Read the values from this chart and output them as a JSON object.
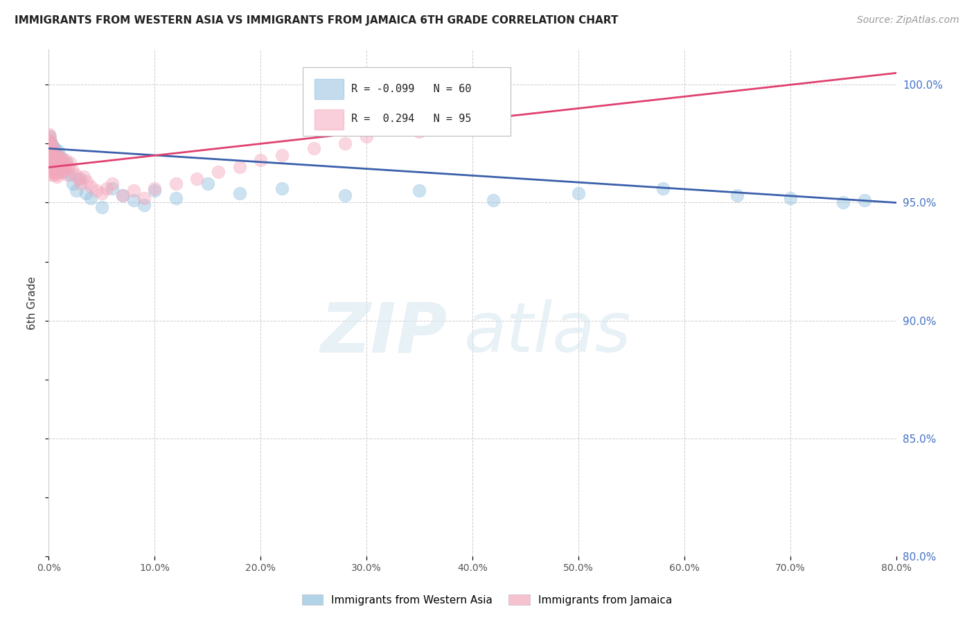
{
  "title": "IMMIGRANTS FROM WESTERN ASIA VS IMMIGRANTS FROM JAMAICA 6TH GRADE CORRELATION CHART",
  "source": "Source: ZipAtlas.com",
  "ylabel": "6th Grade",
  "legend_label_blue": "Immigrants from Western Asia",
  "legend_label_pink": "Immigrants from Jamaica",
  "blue_color": "#92bfdf",
  "pink_color": "#f4a8bc",
  "blue_line_color": "#3a5faa",
  "pink_line_color": "#e04070",
  "watermark_zip": "ZIP",
  "watermark_atlas": "atlas",
  "xlim": [
    0.0,
    80.0
  ],
  "ylim": [
    80.0,
    101.5
  ],
  "ytick_vals": [
    80.0,
    85.0,
    90.0,
    95.0,
    100.0
  ],
  "xtick_vals": [
    0.0,
    10.0,
    20.0,
    30.0,
    40.0,
    50.0,
    60.0,
    70.0,
    80.0
  ],
  "legend_line1": "R = -0.099   N = 60",
  "legend_line2": "R =  0.294   N = 95",
  "blue_scatter_x": [
    0.05,
    0.08,
    0.1,
    0.12,
    0.15,
    0.18,
    0.2,
    0.22,
    0.25,
    0.28,
    0.3,
    0.32,
    0.35,
    0.38,
    0.4,
    0.42,
    0.45,
    0.48,
    0.5,
    0.55,
    0.6,
    0.65,
    0.7,
    0.75,
    0.8,
    0.85,
    0.9,
    1.0,
    1.1,
    1.2,
    1.3,
    1.5,
    1.7,
    2.0,
    2.3,
    2.6,
    3.0,
    3.5,
    4.0,
    5.0,
    6.0,
    7.0,
    8.0,
    9.0,
    10.0,
    12.0,
    15.0,
    18.0,
    22.0,
    28.0,
    35.0,
    42.0,
    50.0,
    58.0,
    65.0,
    70.0,
    75.0,
    77.0,
    0.06,
    0.09
  ],
  "blue_scatter_y": [
    97.5,
    97.8,
    97.3,
    97.6,
    97.2,
    97.4,
    97.0,
    97.5,
    97.1,
    97.3,
    97.2,
    96.9,
    97.4,
    97.0,
    96.8,
    97.2,
    96.7,
    97.0,
    96.9,
    96.8,
    97.3,
    96.6,
    97.1,
    96.5,
    97.0,
    96.4,
    97.2,
    96.8,
    96.6,
    96.9,
    96.5,
    96.3,
    96.7,
    96.2,
    95.8,
    95.5,
    96.0,
    95.4,
    95.2,
    94.8,
    95.6,
    95.3,
    95.1,
    94.9,
    95.5,
    95.2,
    95.8,
    95.4,
    95.6,
    95.3,
    95.5,
    95.1,
    95.4,
    95.6,
    95.3,
    95.2,
    95.0,
    95.1,
    97.6,
    97.4
  ],
  "pink_scatter_x": [
    0.05,
    0.08,
    0.1,
    0.12,
    0.15,
    0.18,
    0.2,
    0.22,
    0.25,
    0.28,
    0.3,
    0.32,
    0.35,
    0.38,
    0.4,
    0.42,
    0.45,
    0.48,
    0.5,
    0.55,
    0.6,
    0.65,
    0.7,
    0.75,
    0.8,
    0.85,
    0.9,
    1.0,
    1.1,
    1.2,
    1.3,
    1.4,
    1.5,
    1.6,
    1.7,
    1.8,
    2.0,
    2.2,
    2.5,
    2.8,
    3.0,
    3.3,
    3.6,
    4.0,
    4.5,
    5.0,
    5.5,
    6.0,
    7.0,
    8.0,
    9.0,
    10.0,
    12.0,
    14.0,
    16.0,
    18.0,
    20.0,
    22.0,
    25.0,
    28.0,
    30.0,
    35.0,
    0.06,
    0.09,
    0.13,
    0.16,
    0.19,
    0.23,
    0.26,
    0.29,
    0.33,
    0.36,
    0.39,
    0.43,
    0.46,
    0.49,
    0.52,
    0.56,
    0.59,
    0.62,
    0.66,
    0.69,
    0.72,
    0.76,
    0.79,
    0.82,
    0.86,
    0.89,
    0.92,
    0.96,
    1.05,
    1.15,
    1.25,
    1.35,
    1.45
  ],
  "pink_scatter_y": [
    97.8,
    97.5,
    96.5,
    97.2,
    97.6,
    97.3,
    97.0,
    96.8,
    97.4,
    97.1,
    96.7,
    96.9,
    97.3,
    96.5,
    96.8,
    97.0,
    96.4,
    96.7,
    96.9,
    96.3,
    96.6,
    96.8,
    97.1,
    96.4,
    96.7,
    96.5,
    96.9,
    96.6,
    96.4,
    96.8,
    96.3,
    96.6,
    96.5,
    96.8,
    96.2,
    96.5,
    96.7,
    96.4,
    96.2,
    96.0,
    95.8,
    96.1,
    95.9,
    95.7,
    95.5,
    95.4,
    95.6,
    95.8,
    95.3,
    95.5,
    95.2,
    95.6,
    95.8,
    96.0,
    96.3,
    96.5,
    96.8,
    97.0,
    97.3,
    97.5,
    97.8,
    98.0,
    97.9,
    97.6,
    96.2,
    97.4,
    97.2,
    96.6,
    97.1,
    96.3,
    96.9,
    96.5,
    97.0,
    96.4,
    96.8,
    96.2,
    96.7,
    96.5,
    96.3,
    96.8,
    96.5,
    96.2,
    96.7,
    96.4,
    96.1,
    96.8,
    96.5,
    96.3,
    96.7,
    96.4,
    96.6,
    96.9,
    96.4,
    96.7,
    96.5
  ]
}
